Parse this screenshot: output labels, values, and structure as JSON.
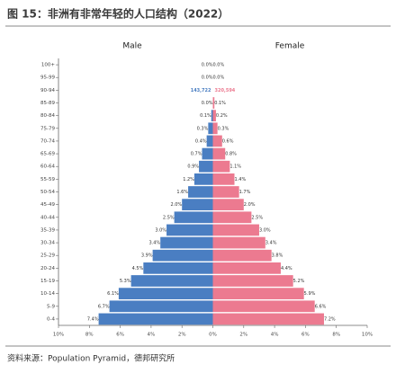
{
  "chart_data": {
    "type": "pyramid",
    "title": "图 15：非洲有非常年轻的人口结构（2022）",
    "source": "资料来源：Population Pyramid，德邦研究所",
    "categories": [
      "0-4",
      "5-9",
      "10-14",
      "15-19",
      "20-24",
      "25-29",
      "30-34",
      "35-39",
      "40-44",
      "45-49",
      "50-54",
      "55-59",
      "60-64",
      "65-69",
      "70-74",
      "75-79",
      "80-84",
      "85-89",
      "90-94",
      "95-99",
      "100+"
    ],
    "series": [
      {
        "name": "Male",
        "color": "#4a7ec2",
        "values": [
          7.4,
          6.7,
          6.1,
          5.3,
          4.5,
          3.9,
          3.4,
          3.0,
          2.5,
          2.0,
          1.6,
          1.2,
          0.9,
          0.7,
          0.4,
          0.3,
          0.1,
          0.0,
          0.0,
          0.0,
          0.0
        ],
        "value_labels": [
          "7.4%",
          "6.7%",
          "6.1%",
          "5.3%",
          "4.5%",
          "3.9%",
          "3.4%",
          "3.0%",
          "2.5%",
          "2.0%",
          "1.6%",
          "1.2%",
          "0.9%",
          "0.7%",
          "0.4%",
          "0.3%",
          "0.1%",
          "0.0%",
          null,
          "0.0%",
          "0.0%"
        ]
      },
      {
        "name": "Female",
        "color": "#ec7a90",
        "values": [
          7.2,
          6.6,
          5.9,
          5.2,
          4.4,
          3.8,
          3.4,
          3.0,
          2.5,
          2.0,
          1.7,
          1.4,
          1.1,
          0.8,
          0.6,
          0.3,
          0.2,
          0.1,
          0.0,
          0.0,
          0.0
        ],
        "value_labels": [
          "7.2%",
          "6.6%",
          "5.9%",
          "5.2%",
          "4.4%",
          "3.8%",
          "3.4%",
          "3.0%",
          "2.5%",
          "2.0%",
          "1.7%",
          "1.4%",
          "1.1%",
          "0.8%",
          "0.6%",
          "0.3%",
          "0.2%",
          "0.1%",
          null,
          "0.0%",
          "0.0%"
        ]
      }
    ],
    "annotations": [
      {
        "category": "90-94",
        "series": "Male",
        "text": "143,722"
      },
      {
        "category": "90-94",
        "series": "Female",
        "text": "320,594"
      }
    ],
    "xlim": [
      -10,
      10
    ],
    "xticks": [
      {
        "value": -10,
        "label": "10%"
      },
      {
        "value": -8,
        "label": "8%"
      },
      {
        "value": -6,
        "label": "6%"
      },
      {
        "value": -4,
        "label": "4%"
      },
      {
        "value": -2,
        "label": "2%"
      },
      {
        "value": 0,
        "label": "0%"
      },
      {
        "value": 2,
        "label": "2%"
      },
      {
        "value": 4,
        "label": "4%"
      },
      {
        "value": 6,
        "label": "6%"
      },
      {
        "value": 8,
        "label": "8%"
      },
      {
        "value": 10,
        "label": "10%"
      }
    ]
  }
}
